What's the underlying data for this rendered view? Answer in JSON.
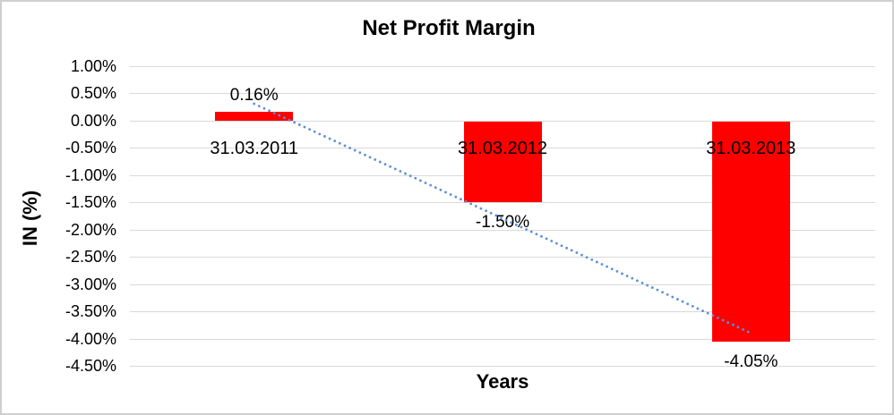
{
  "chart_data": {
    "type": "bar",
    "title": "Net Profit Margin",
    "xlabel": "Years",
    "ylabel": "IN (%)",
    "categories": [
      "31.03.2011",
      "31.03.2012",
      "31.03.2013"
    ],
    "values": [
      0.16,
      -1.5,
      -4.05
    ],
    "data_labels": [
      "0.16%",
      "-1.50%",
      "-4.05%"
    ],
    "ylim": [
      -4.5,
      1.0
    ],
    "ytick_step": 0.5,
    "ytick_labels": [
      "1.00%",
      "0.50%",
      "0.00%",
      "-0.50%",
      "-1.00%",
      "-1.50%",
      "-2.00%",
      "-2.50%",
      "-3.00%",
      "-3.50%",
      "-4.00%",
      "-4.50%"
    ],
    "grid": true,
    "legend": false,
    "bar_color": "#FF0000",
    "gridline_color": "#D9D9D9",
    "text_color": "#000000",
    "trendline": {
      "type": "linear",
      "style": "dotted",
      "color": "#5B8FD5",
      "start_value": 0.31,
      "end_value": -3.9
    }
  }
}
